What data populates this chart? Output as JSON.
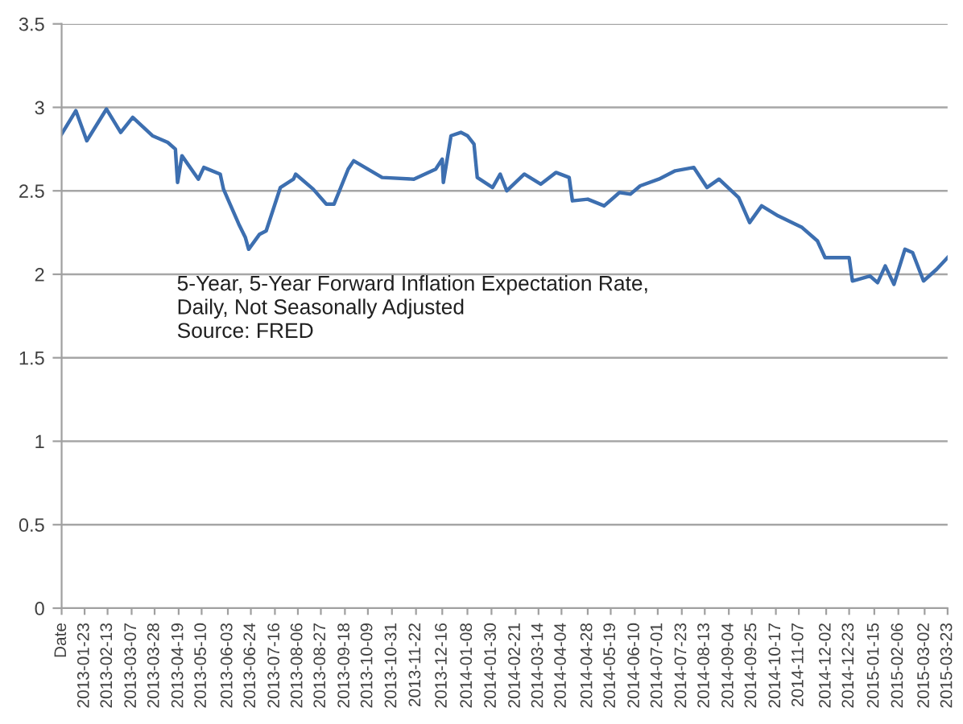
{
  "chart_data": {
    "type": "line",
    "x": [
      "2013-01-02",
      "2013-01-15",
      "2013-01-25",
      "2013-02-12",
      "2013-02-25",
      "2013-03-08",
      "2013-03-26",
      "2013-04-09",
      "2013-04-16",
      "2013-04-18",
      "2013-04-22",
      "2013-05-07",
      "2013-05-12",
      "2013-05-27",
      "2013-05-30",
      "2013-06-13",
      "2013-06-19",
      "2013-06-22",
      "2013-07-02",
      "2013-07-08",
      "2013-07-18",
      "2013-07-21",
      "2013-08-02",
      "2013-08-04",
      "2013-08-20",
      "2013-09-01",
      "2013-09-08",
      "2013-09-13",
      "2013-09-21",
      "2013-09-26",
      "2013-10-22",
      "2013-11-20",
      "2013-12-10",
      "2013-12-16",
      "2013-12-17",
      "2013-12-24",
      "2014-01-02",
      "2014-01-08",
      "2014-01-14",
      "2014-01-17",
      "2014-01-31",
      "2014-02-07",
      "2014-02-13",
      "2014-03-01",
      "2014-03-16",
      "2014-03-30",
      "2014-04-11",
      "2014-04-14",
      "2014-04-28",
      "2014-05-13",
      "2014-05-27",
      "2014-06-06",
      "2014-06-15",
      "2014-07-02",
      "2014-07-17",
      "2014-08-03",
      "2014-08-15",
      "2014-08-26",
      "2014-09-13",
      "2014-09-23",
      "2014-10-04",
      "2014-10-19",
      "2014-11-10",
      "2014-11-24",
      "2014-12-01",
      "2014-12-23",
      "2014-12-26",
      "2015-01-11",
      "2015-01-18",
      "2015-01-25",
      "2015-02-02",
      "2015-02-12",
      "2015-02-19",
      "2015-03-01",
      "2015-03-13",
      "2015-03-23"
    ],
    "series": [
      {
        "color": "#3d6fb0",
        "values": [
          2.84,
          2.98,
          2.8,
          2.99,
          2.85,
          2.94,
          2.83,
          2.79,
          2.75,
          2.55,
          2.71,
          2.57,
          2.64,
          2.6,
          2.51,
          2.3,
          2.22,
          2.15,
          2.24,
          2.26,
          2.46,
          2.52,
          2.57,
          2.6,
          2.51,
          2.42,
          2.42,
          2.5,
          2.63,
          2.68,
          2.58,
          2.57,
          2.63,
          2.69,
          2.55,
          2.83,
          2.85,
          2.83,
          2.78,
          2.58,
          2.52,
          2.6,
          2.5,
          2.6,
          2.54,
          2.61,
          2.58,
          2.44,
          2.45,
          2.41,
          2.49,
          2.48,
          2.53,
          2.57,
          2.62,
          2.64,
          2.52,
          2.57,
          2.46,
          2.31,
          2.41,
          2.35,
          2.28,
          2.2,
          2.1,
          2.1,
          1.96,
          1.99,
          1.95,
          2.05,
          1.94,
          2.15,
          2.13,
          1.96,
          2.03,
          2.1
        ]
      }
    ],
    "xlim": [
      "2013-01-02",
      "2015-03-23"
    ],
    "xticks": [
      {
        "value": "2013-01-02",
        "label": "Date"
      },
      "2013-01-23",
      "2013-02-13",
      "2013-03-07",
      "2013-03-28",
      "2013-04-19",
      "2013-05-10",
      "2013-06-03",
      "2013-06-24",
      "2013-07-16",
      "2013-08-06",
      "2013-08-27",
      "2013-09-18",
      "2013-10-09",
      "2013-10-31",
      "2013-11-22",
      "2013-12-16",
      "2014-01-08",
      "2014-01-30",
      "2014-02-21",
      "2014-03-14",
      "2014-04-04",
      "2014-04-28",
      "2014-05-19",
      "2014-06-10",
      "2014-07-01",
      "2014-07-23",
      "2014-08-13",
      "2014-09-04",
      "2014-09-25",
      "2014-10-17",
      "2014-11-07",
      "2014-12-02",
      "2014-12-23",
      "2015-01-15",
      "2015-02-06",
      "2015-03-02",
      "2015-03-23"
    ],
    "ylim": [
      0,
      3.5
    ],
    "yticks": [
      0,
      0.5,
      1,
      1.5,
      2,
      2.5,
      3,
      3.5
    ],
    "grid": "y",
    "legend": false,
    "marker": "none",
    "line_style": "solid",
    "annotations": [
      "5-Year, 5-Year Forward Inflation Expectation Rate,\nDaily, Not Seasonally Adjusted\nSource: FRED"
    ]
  }
}
